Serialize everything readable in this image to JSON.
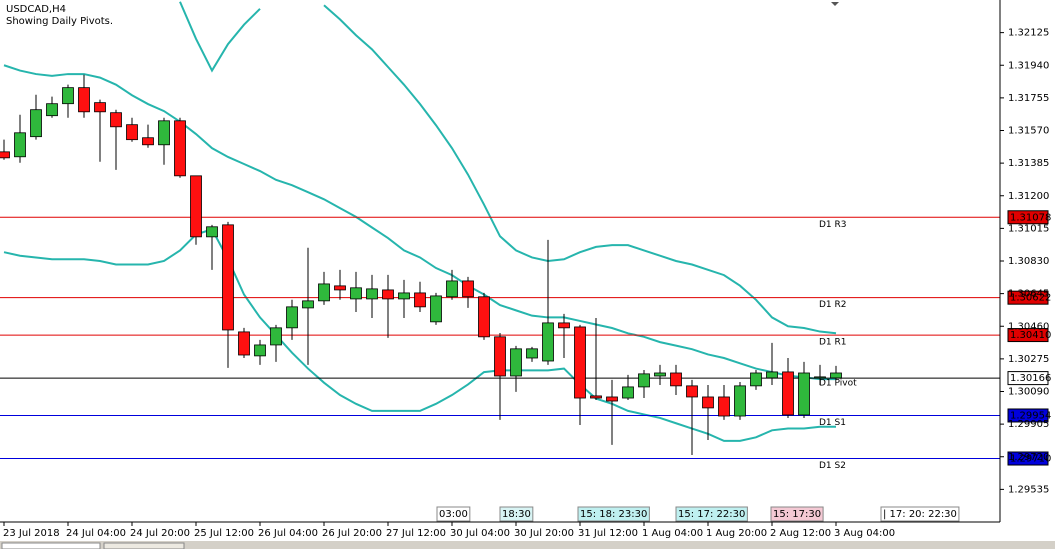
{
  "chart_data": {
    "type": "candlestick",
    "title": "USDCAD,H4",
    "subtitle": "Showing Daily Pivots.",
    "categories": [
      "23 Jul 2018",
      null,
      null,
      null,
      "24 Jul 04:00",
      null,
      null,
      null,
      "24 Jul 20:00",
      null,
      null,
      null,
      "25 Jul 12:00",
      null,
      null,
      null,
      "26 Jul 04:00",
      null,
      null,
      null,
      "26 Jul 20:00",
      null,
      null,
      null,
      "27 Jul 12:00",
      null,
      null,
      null,
      "30 Jul 04:00",
      null,
      null,
      null,
      "30 Jul 20:00",
      null,
      null,
      null,
      "31 Jul 12:00",
      null,
      null,
      null,
      "1 Aug 04:00",
      null,
      null,
      null,
      "1 Aug 20:00",
      null,
      null,
      null,
      "2 Aug 12:00",
      null,
      null,
      null,
      "3 Aug 04:00"
    ],
    "open": [
      1.31449,
      1.31421,
      1.31535,
      1.31654,
      1.31722,
      1.31813,
      1.31728,
      1.31671,
      1.31603,
      1.31529,
      1.31489,
      1.31625,
      1.31313,
      1.30967,
      1.31035,
      1.30428,
      1.30292,
      1.30354,
      1.30451,
      1.30564,
      1.30604,
      1.30689,
      1.30615,
      1.30615,
      1.30666,
      1.30615,
      1.30649,
      1.30485,
      1.30627,
      1.30717,
      1.30627,
      1.304,
      1.30178,
      1.3028,
      1.30263,
      1.30479,
      1.30456,
      1.30065,
      1.30059,
      1.30053,
      1.30116,
      1.30178,
      1.30195,
      1.30122,
      1.30059,
      1.30059,
      1.29951,
      1.30122,
      1.30167,
      1.30201,
      1.29957,
      1.30167,
      1.30167
    ],
    "high": [
      1.31518,
      1.31659,
      1.31773,
      1.31762,
      1.3183,
      1.31886,
      1.31745,
      1.31688,
      1.31642,
      1.31603,
      1.31642,
      1.31642,
      1.31313,
      1.31035,
      1.31052,
      1.30451,
      1.30383,
      1.30468,
      1.3061,
      1.30905,
      1.30768,
      1.3078,
      1.30768,
      1.30751,
      1.30751,
      1.30723,
      1.30712,
      1.30649,
      1.3078,
      1.3074,
      1.30649,
      1.30422,
      1.30349,
      1.30343,
      1.3095,
      1.3053,
      1.30468,
      1.30507,
      1.30156,
      1.30184,
      1.30212,
      1.30241,
      1.30241,
      1.30156,
      1.30127,
      1.30127,
      1.30144,
      1.30212,
      1.30366,
      1.3028,
      1.30258,
      1.30241,
      1.30235
    ],
    "low": [
      1.31404,
      1.31387,
      1.31518,
      1.31642,
      1.31642,
      1.31642,
      1.31393,
      1.31347,
      1.31506,
      1.31472,
      1.31376,
      1.31302,
      1.30922,
      1.3078,
      1.30224,
      1.3028,
      1.30241,
      1.30258,
      1.30383,
      1.30241,
      1.30581,
      1.3061,
      1.30541,
      1.30507,
      1.30394,
      1.30507,
      1.30541,
      1.30468,
      1.3061,
      1.30564,
      1.30383,
      1.29929,
      1.30088,
      1.30258,
      1.30241,
      1.3028,
      1.299,
      1.30042,
      1.29787,
      1.30042,
      1.30053,
      1.30127,
      1.3007,
      1.2973,
      1.29815,
      1.29929,
      1.29929,
      1.30099,
      1.30127,
      1.2994,
      1.2994,
      1.30127,
      1.30156
    ],
    "close": [
      1.31415,
      1.31557,
      1.31688,
      1.31722,
      1.31813,
      1.31676,
      1.31676,
      1.31591,
      1.31518,
      1.31489,
      1.31625,
      1.31313,
      1.30967,
      1.31024,
      1.30439,
      1.30297,
      1.30354,
      1.30451,
      1.3057,
      1.30604,
      1.307,
      1.30666,
      1.30678,
      1.30672,
      1.30615,
      1.30649,
      1.3057,
      1.30632,
      1.30717,
      1.30627,
      1.304,
      1.30178,
      1.30332,
      1.30332,
      1.30479,
      1.30451,
      1.30053,
      1.30053,
      1.30036,
      1.30116,
      1.3019,
      1.30195,
      1.30122,
      1.30059,
      1.29997,
      1.29951,
      1.30122,
      1.30195,
      1.30201,
      1.29957,
      1.30195,
      1.30173,
      1.30195
    ],
    "up_color": "#2fb83c",
    "down_color": "#ff1010",
    "series": [
      {
        "color": "#26b5ad",
        "values": [
          null,
          null,
          null,
          null,
          null,
          null,
          null,
          null,
          null,
          null,
          null,
          1.323,
          1.3209,
          1.3191,
          1.3206,
          1.3217,
          1.3226,
          null,
          null,
          null,
          1.3228,
          1.322,
          1.3211,
          1.3203,
          1.3193,
          1.3183,
          1.3172,
          1.316,
          1.3147,
          1.3132,
          1.3115,
          1.3097,
          1.3089,
          1.3085,
          1.3083,
          1.3084,
          1.3088,
          1.3091,
          1.3092,
          1.3092,
          1.3089,
          1.3086,
          1.3083,
          1.3081,
          1.3078,
          1.3075,
          1.3069,
          1.3061,
          1.3051,
          1.3046,
          1.3045,
          1.3043,
          1.3042
        ]
      },
      {
        "color": "#26b5ad",
        "values": [
          1.3194,
          1.3191,
          1.3189,
          1.3188,
          1.3189,
          1.3189,
          1.3187,
          1.3183,
          1.3177,
          1.3172,
          1.3168,
          1.3162,
          1.3155,
          1.3147,
          1.3142,
          1.3138,
          1.3134,
          1.3129,
          1.3126,
          1.3122,
          1.3118,
          1.3113,
          1.3108,
          1.3102,
          1.3096,
          1.3089,
          1.3085,
          1.3079,
          1.3075,
          1.3069,
          1.3064,
          1.3058,
          1.3055,
          1.3052,
          1.3051,
          1.3051,
          1.3049,
          1.3047,
          1.3045,
          1.3042,
          1.304,
          1.3037,
          1.3035,
          1.3033,
          1.303,
          1.3028,
          1.3025,
          1.3022,
          1.302,
          1.3018,
          1.3017,
          1.3016,
          1.3016
        ]
      },
      {
        "color": "#26b5ad",
        "values": [
          1.3088,
          1.3086,
          1.3085,
          1.3084,
          1.3084,
          1.3084,
          1.3083,
          1.3081,
          1.3081,
          1.3081,
          1.3083,
          1.3089,
          1.3098,
          1.3101,
          1.3084,
          1.3064,
          1.3051,
          1.3041,
          1.3031,
          1.3022,
          1.3014,
          1.3007,
          1.3002,
          1.2998,
          1.2998,
          1.2998,
          1.2998,
          1.3002,
          1.3007,
          1.3013,
          1.302,
          1.3021,
          1.3021,
          1.3021,
          1.3021,
          1.3022,
          1.3013,
          1.3005,
          1.3002,
          1.2998,
          1.2996,
          1.2994,
          1.2991,
          1.2988,
          1.2985,
          1.2981,
          1.2981,
          1.2983,
          1.2987,
          1.2988,
          1.2988,
          1.2989,
          1.2989
        ]
      }
    ],
    "pivots": {
      "labels": [
        "D1 R3",
        "D1 R2",
        "D1 R1",
        "D1 Pivot",
        "D1 S1",
        "D1 S2"
      ],
      "values": [
        1.31078,
        1.30622,
        1.3041,
        1.30166,
        1.29954,
        1.2971
      ],
      "value_labels": [
        "1.31078",
        "1.30622",
        "1.30410",
        "1.30166",
        "1.29954",
        "1.29710"
      ],
      "colors": [
        "#e00000",
        "#e00000",
        "#e00000",
        "#000000",
        "#0000dd",
        "#0000dd"
      ]
    },
    "ylim": [
      1.2935,
      1.3231
    ],
    "yticks": [
      1.32125,
      {
        "value": 1.3194,
        "label": "1.31940"
      },
      1.31755,
      {
        "value": 1.3157,
        "label": "1.31570"
      },
      1.31385,
      {
        "value": 1.312,
        "label": "1.31200"
      },
      1.31015,
      {
        "value": 1.3083,
        "label": "1.30830"
      },
      1.30645,
      {
        "value": 1.3046,
        "label": "1.30460"
      },
      1.30275,
      {
        "value": 1.3009,
        "label": "1.30090"
      },
      1.29905,
      {
        "value": 1.2972,
        "label": "1.29720"
      },
      1.29535
    ],
    "time_markers": [
      "03:00",
      "18:30",
      "15: 18: 23:30",
      "15: 17: 22:30",
      "15: 17:30",
      "| 17: 20: 22:30"
    ]
  }
}
